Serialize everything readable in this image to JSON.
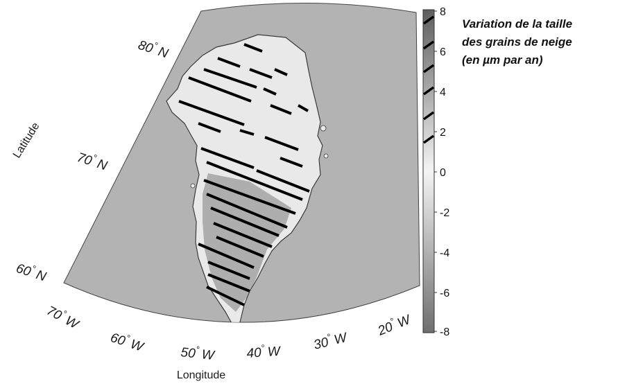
{
  "map": {
    "latitude_labels": [
      {
        "id": "lat-80",
        "deg": "80",
        "hemi": "N"
      },
      {
        "id": "lat-70",
        "deg": "70",
        "hemi": "N"
      },
      {
        "id": "lat-60",
        "deg": "60",
        "hemi": "N"
      }
    ],
    "longitude_labels": [
      {
        "id": "lon-70",
        "deg": "70",
        "hemi": "W"
      },
      {
        "id": "lon-60",
        "deg": "60",
        "hemi": "W"
      },
      {
        "id": "lon-50",
        "deg": "50",
        "hemi": "W"
      },
      {
        "id": "lon-40",
        "deg": "40",
        "hemi": "W"
      },
      {
        "id": "lon-30",
        "deg": "30",
        "hemi": "W"
      },
      {
        "id": "lon-20",
        "deg": "20",
        "hemi": "W"
      }
    ],
    "axis_x_title": "Longitude",
    "axis_y_title": "Latitude",
    "degree_symbol": "°"
  },
  "colorbar": {
    "title_lines": [
      "Variation de la taille",
      "des grains de neige",
      "(en µm par an)"
    ],
    "ticks": [
      "8",
      "6",
      "4",
      "2",
      "0",
      "-2",
      "-4",
      "-6",
      "-8"
    ],
    "range": [
      -8,
      8
    ],
    "hatched_range": [
      1,
      8
    ],
    "colors": {
      "low": "#6e6e6e",
      "mid": "#f2f2f2",
      "high": "#5a5a5a"
    }
  },
  "colors": {
    "ocean_sector": "#b3b3b3",
    "ice_sheet": "#e9e9e9",
    "hatch": "#000000",
    "outline": "#3a3a3a"
  }
}
